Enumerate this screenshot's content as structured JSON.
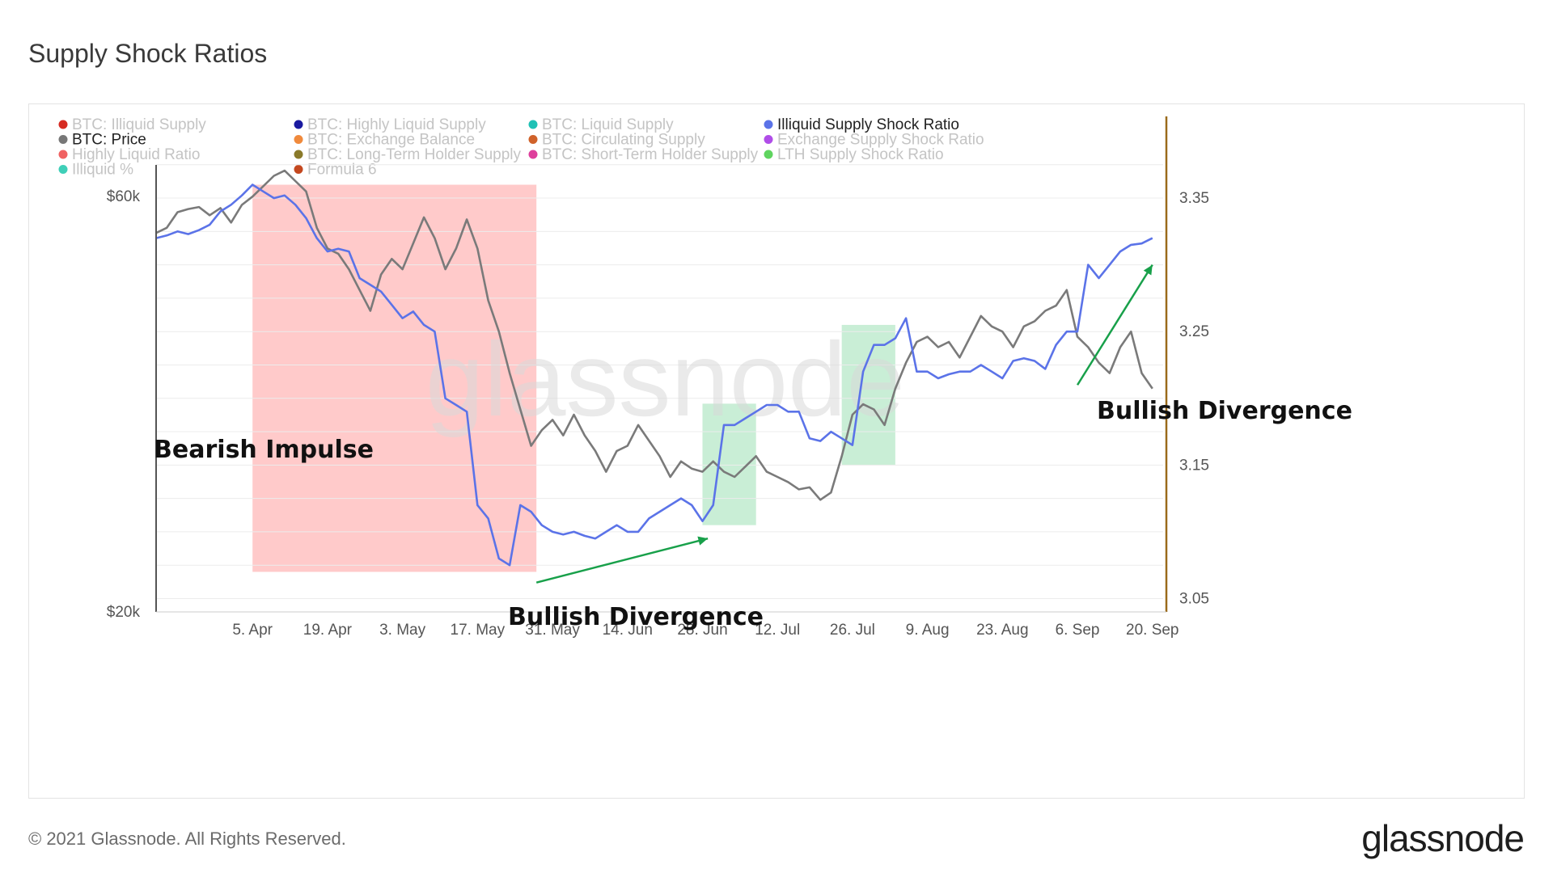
{
  "page": {
    "title": "Supply Shock Ratios",
    "copyright": "© 2021 Glassnode. All Rights Reserved.",
    "logo": "glassnode",
    "watermark": "glassnode"
  },
  "legend": [
    {
      "label": "BTC: Illiquid Supply",
      "color": "#d62b22",
      "active": false
    },
    {
      "label": "BTC: Highly Liquid Supply",
      "color": "#1a1aa0",
      "active": false
    },
    {
      "label": "BTC: Liquid Supply",
      "color": "#1fc1b5",
      "active": false
    },
    {
      "label": "Illiquid Supply Shock Ratio",
      "color": "#5b73e8",
      "active": true
    },
    {
      "label": "BTC: Price",
      "color": "#777777",
      "active": true
    },
    {
      "label": "BTC: Exchange Balance",
      "color": "#f08a3c",
      "active": false
    },
    {
      "label": "BTC: Circulating Supply",
      "color": "#d0622a",
      "active": false
    },
    {
      "label": "Exchange Supply Shock Ratio",
      "color": "#b04de8",
      "active": false
    },
    {
      "label": "Highly Liquid Ratio",
      "color": "#f06262",
      "active": false
    },
    {
      "label": "BTC: Long-Term Holder Supply",
      "color": "#8a7a2a",
      "active": false
    },
    {
      "label": "BTC: Short-Term Holder Supply",
      "color": "#de3f9c",
      "active": false
    },
    {
      "label": "LTH Supply Shock Ratio",
      "color": "#5fd45f",
      "active": false
    },
    {
      "label": "Illiquid %",
      "color": "#3fcfb8",
      "active": false
    },
    {
      "label": "Formula 6",
      "color": "#c4481f",
      "active": false
    }
  ],
  "chart_data": {
    "type": "line",
    "title": "Supply Shock Ratios",
    "x_tick_labels": [
      "5. Apr",
      "19. Apr",
      "3. May",
      "17. May",
      "31. May",
      "14. Jun",
      "28. Jun",
      "12. Jul",
      "26. Jul",
      "9. Aug",
      "23. Aug",
      "6. Sep",
      "20. Sep"
    ],
    "x_tick_days": [
      4,
      18,
      32,
      46,
      60,
      74,
      88,
      102,
      116,
      130,
      144,
      158,
      172
    ],
    "y_left": {
      "tick_labels": [
        "$20k",
        "$60k"
      ],
      "ticks": [
        20000,
        60000
      ],
      "range": [
        20000,
        65000
      ]
    },
    "y_right": {
      "tick_labels": [
        "3.05",
        "3.15",
        "3.25",
        "3.35"
      ],
      "ticks": [
        3.05,
        3.15,
        3.25,
        3.35
      ],
      "range": [
        3.04,
        3.39
      ]
    },
    "x_range_days": [
      -14,
      174
    ],
    "series": [
      {
        "name": "BTC: Price",
        "color": "#7a7a7a",
        "axis": "left",
        "points": [
          [
            -14,
            56500
          ],
          [
            -12,
            57000
          ],
          [
            -10,
            58500
          ],
          [
            -8,
            58800
          ],
          [
            -6,
            59000
          ],
          [
            -4,
            58200
          ],
          [
            -2,
            58900
          ],
          [
            0,
            57500
          ],
          [
            2,
            59200
          ],
          [
            4,
            60000
          ],
          [
            6,
            61000
          ],
          [
            8,
            62000
          ],
          [
            10,
            62500
          ],
          [
            12,
            61500
          ],
          [
            14,
            60500
          ],
          [
            16,
            57000
          ],
          [
            18,
            55000
          ],
          [
            20,
            54500
          ],
          [
            22,
            53000
          ],
          [
            24,
            51000
          ],
          [
            26,
            49000
          ],
          [
            28,
            52500
          ],
          [
            30,
            54000
          ],
          [
            32,
            53000
          ],
          [
            34,
            55500
          ],
          [
            36,
            58000
          ],
          [
            38,
            56000
          ],
          [
            40,
            53000
          ],
          [
            42,
            55000
          ],
          [
            44,
            57800
          ],
          [
            46,
            55000
          ],
          [
            48,
            50000
          ],
          [
            50,
            47000
          ],
          [
            52,
            43000
          ],
          [
            54,
            39500
          ],
          [
            56,
            36000
          ],
          [
            58,
            37500
          ],
          [
            60,
            38500
          ],
          [
            62,
            37000
          ],
          [
            64,
            39000
          ],
          [
            66,
            37000
          ],
          [
            68,
            35500
          ],
          [
            70,
            33500
          ],
          [
            72,
            35500
          ],
          [
            74,
            36000
          ],
          [
            76,
            38000
          ],
          [
            78,
            36500
          ],
          [
            80,
            35000
          ],
          [
            82,
            33000
          ],
          [
            84,
            34500
          ],
          [
            86,
            33800
          ],
          [
            88,
            33500
          ],
          [
            90,
            34500
          ],
          [
            92,
            33500
          ],
          [
            94,
            33000
          ],
          [
            96,
            34000
          ],
          [
            98,
            35000
          ],
          [
            100,
            33500
          ],
          [
            102,
            33000
          ],
          [
            104,
            32500
          ],
          [
            106,
            31800
          ],
          [
            108,
            32000
          ],
          [
            110,
            30800
          ],
          [
            112,
            31500
          ],
          [
            114,
            35000
          ],
          [
            116,
            39000
          ],
          [
            118,
            40000
          ],
          [
            120,
            39500
          ],
          [
            122,
            38000
          ],
          [
            124,
            41500
          ],
          [
            126,
            44000
          ],
          [
            128,
            46000
          ],
          [
            130,
            46500
          ],
          [
            132,
            45500
          ],
          [
            134,
            46000
          ],
          [
            136,
            44500
          ],
          [
            138,
            46500
          ],
          [
            140,
            48500
          ],
          [
            142,
            47500
          ],
          [
            144,
            47000
          ],
          [
            146,
            45500
          ],
          [
            148,
            47500
          ],
          [
            150,
            48000
          ],
          [
            152,
            49000
          ],
          [
            154,
            49500
          ],
          [
            156,
            51000
          ],
          [
            158,
            46500
          ],
          [
            160,
            45500
          ],
          [
            162,
            44000
          ],
          [
            164,
            43000
          ],
          [
            166,
            45500
          ],
          [
            168,
            47000
          ],
          [
            170,
            43000
          ],
          [
            172,
            41500
          ]
        ]
      },
      {
        "name": "Illiquid Supply Shock Ratio",
        "color": "#5b73e8",
        "axis": "right",
        "points": [
          [
            -14,
            3.32
          ],
          [
            -12,
            3.322
          ],
          [
            -10,
            3.325
          ],
          [
            -8,
            3.323
          ],
          [
            -6,
            3.326
          ],
          [
            -4,
            3.33
          ],
          [
            -2,
            3.34
          ],
          [
            0,
            3.345
          ],
          [
            2,
            3.352
          ],
          [
            4,
            3.36
          ],
          [
            6,
            3.355
          ],
          [
            8,
            3.35
          ],
          [
            10,
            3.352
          ],
          [
            12,
            3.345
          ],
          [
            14,
            3.335
          ],
          [
            16,
            3.32
          ],
          [
            18,
            3.31
          ],
          [
            20,
            3.312
          ],
          [
            22,
            3.31
          ],
          [
            24,
            3.29
          ],
          [
            26,
            3.285
          ],
          [
            28,
            3.28
          ],
          [
            30,
            3.27
          ],
          [
            32,
            3.26
          ],
          [
            34,
            3.265
          ],
          [
            36,
            3.255
          ],
          [
            38,
            3.25
          ],
          [
            40,
            3.2
          ],
          [
            42,
            3.195
          ],
          [
            44,
            3.19
          ],
          [
            46,
            3.12
          ],
          [
            48,
            3.11
          ],
          [
            50,
            3.08
          ],
          [
            52,
            3.075
          ],
          [
            54,
            3.12
          ],
          [
            56,
            3.115
          ],
          [
            58,
            3.105
          ],
          [
            60,
            3.1
          ],
          [
            62,
            3.098
          ],
          [
            64,
            3.1
          ],
          [
            66,
            3.097
          ],
          [
            68,
            3.095
          ],
          [
            70,
            3.1
          ],
          [
            72,
            3.105
          ],
          [
            74,
            3.1
          ],
          [
            76,
            3.1
          ],
          [
            78,
            3.11
          ],
          [
            80,
            3.115
          ],
          [
            82,
            3.12
          ],
          [
            84,
            3.125
          ],
          [
            86,
            3.12
          ],
          [
            88,
            3.108
          ],
          [
            90,
            3.12
          ],
          [
            92,
            3.18
          ],
          [
            94,
            3.18
          ],
          [
            96,
            3.185
          ],
          [
            98,
            3.19
          ],
          [
            100,
            3.195
          ],
          [
            102,
            3.195
          ],
          [
            104,
            3.19
          ],
          [
            106,
            3.19
          ],
          [
            108,
            3.17
          ],
          [
            110,
            3.168
          ],
          [
            112,
            3.175
          ],
          [
            114,
            3.17
          ],
          [
            116,
            3.165
          ],
          [
            118,
            3.22
          ],
          [
            120,
            3.24
          ],
          [
            122,
            3.24
          ],
          [
            124,
            3.245
          ],
          [
            126,
            3.26
          ],
          [
            128,
            3.22
          ],
          [
            130,
            3.22
          ],
          [
            132,
            3.215
          ],
          [
            134,
            3.218
          ],
          [
            136,
            3.22
          ],
          [
            138,
            3.22
          ],
          [
            140,
            3.225
          ],
          [
            142,
            3.22
          ],
          [
            144,
            3.215
          ],
          [
            146,
            3.228
          ],
          [
            148,
            3.23
          ],
          [
            150,
            3.228
          ],
          [
            152,
            3.222
          ],
          [
            154,
            3.24
          ],
          [
            156,
            3.25
          ],
          [
            158,
            3.25
          ],
          [
            160,
            3.3
          ],
          [
            162,
            3.29
          ],
          [
            164,
            3.3
          ],
          [
            166,
            3.31
          ],
          [
            168,
            3.315
          ],
          [
            170,
            3.316
          ],
          [
            172,
            3.32
          ]
        ]
      }
    ],
    "highlight_regions": [
      {
        "label": "Bearish Impulse",
        "start": 4,
        "end": 57,
        "top": 3.36,
        "bottom": 3.07,
        "color": "#ffb8b8"
      },
      {
        "label": "",
        "start": 88,
        "end": 98,
        "top": 3.196,
        "bottom": 3.105,
        "color": "#b7e8c8"
      },
      {
        "label": "",
        "start": 114,
        "end": 124,
        "top": 3.255,
        "bottom": 3.15,
        "color": "#b7e8c8"
      }
    ],
    "annotations": [
      {
        "text": "Bearish Impulse",
        "style": "label"
      },
      {
        "text": "Bullish Divergence",
        "style": "arrow",
        "from": [
          57,
          3.062
        ],
        "to": [
          89,
          3.095
        ]
      },
      {
        "text": "Bullish Divergence",
        "style": "arrow",
        "from": [
          158,
          3.21
        ],
        "to": [
          172,
          3.3
        ]
      }
    ]
  }
}
